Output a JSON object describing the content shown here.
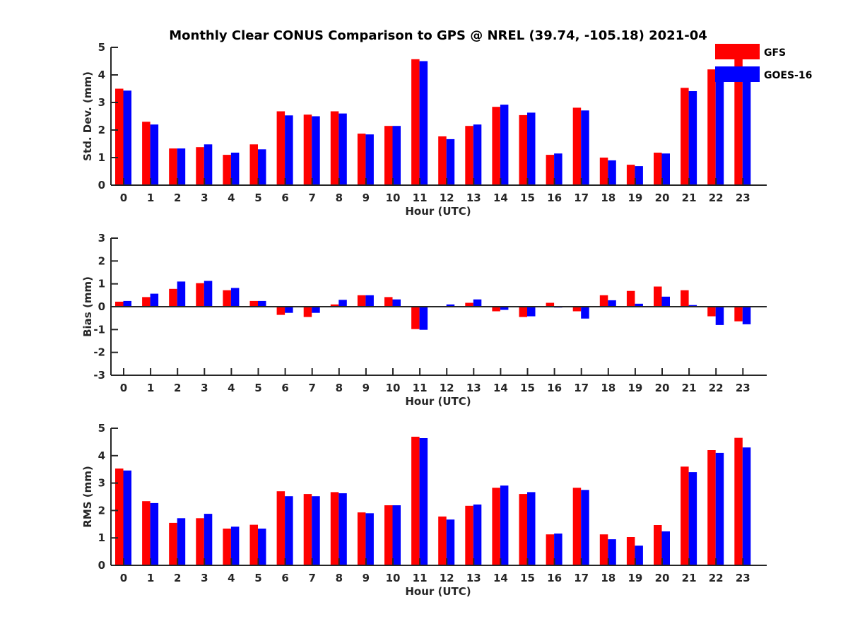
{
  "chart_data": [
    {
      "type": "bar",
      "title": "Monthly Clear CONUS Comparison to GPS @ NREL (39.74, -105.18) 2021-04",
      "xlabel": "Hour (UTC)",
      "ylabel": "Std. Dev. (mm)",
      "ylim": [
        0,
        5
      ],
      "yticks": [
        "0",
        "1",
        "2",
        "3",
        "4",
        "5"
      ],
      "categories": [
        "0",
        "1",
        "2",
        "3",
        "4",
        "5",
        "6",
        "7",
        "8",
        "9",
        "10",
        "11",
        "12",
        "13",
        "14",
        "15",
        "16",
        "17",
        "18",
        "19",
        "20",
        "21",
        "22",
        "23"
      ],
      "legend": "top-right",
      "series": [
        {
          "name": "GFS",
          "color": "#ff0000",
          "values": [
            3.5,
            2.3,
            1.33,
            1.38,
            1.1,
            1.48,
            2.68,
            2.56,
            2.68,
            1.87,
            2.15,
            4.57,
            1.77,
            2.15,
            2.84,
            2.54,
            1.1,
            2.81,
            1.0,
            0.74,
            1.18,
            3.53,
            4.2,
            4.65
          ]
        },
        {
          "name": "GOES-16",
          "color": "#0000ff",
          "values": [
            3.43,
            2.2,
            1.33,
            1.48,
            1.18,
            1.3,
            2.53,
            2.5,
            2.6,
            1.84,
            2.15,
            4.5,
            1.67,
            2.2,
            2.92,
            2.63,
            1.15,
            2.71,
            0.9,
            0.69,
            1.15,
            3.41,
            4.0,
            4.3
          ]
        }
      ]
    },
    {
      "type": "bar",
      "xlabel": "Hour (UTC)",
      "ylabel": "Bias (mm)",
      "ylim": [
        -3,
        3
      ],
      "yticks": [
        "-3",
        "-2",
        "-1",
        "0",
        "1",
        "2",
        "3"
      ],
      "categories": [
        "0",
        "1",
        "2",
        "3",
        "4",
        "5",
        "6",
        "7",
        "8",
        "9",
        "10",
        "11",
        "12",
        "13",
        "14",
        "15",
        "16",
        "17",
        "18",
        "19",
        "20",
        "21",
        "22",
        "23"
      ],
      "series": [
        {
          "name": "GFS",
          "color": "#ff0000",
          "values": [
            0.22,
            0.42,
            0.78,
            1.03,
            0.72,
            0.25,
            -0.36,
            -0.45,
            0.1,
            0.5,
            0.42,
            -0.98,
            0.03,
            0.17,
            -0.2,
            -0.45,
            0.17,
            -0.2,
            0.5,
            0.69,
            0.88,
            0.72,
            -0.42,
            -0.64
          ]
        },
        {
          "name": "GOES-16",
          "color": "#0000ff",
          "values": [
            0.25,
            0.57,
            1.1,
            1.13,
            0.82,
            0.25,
            -0.27,
            -0.27,
            0.3,
            0.5,
            0.32,
            -1.01,
            0.1,
            0.32,
            -0.14,
            -0.42,
            -0.04,
            -0.52,
            0.28,
            0.13,
            0.44,
            0.07,
            -0.8,
            -0.77
          ]
        }
      ]
    },
    {
      "type": "bar",
      "xlabel": "Hour (UTC)",
      "ylabel": "RMS (mm)",
      "ylim": [
        0,
        5
      ],
      "yticks": [
        "0",
        "1",
        "2",
        "3",
        "4",
        "5"
      ],
      "categories": [
        "0",
        "1",
        "2",
        "3",
        "4",
        "5",
        "6",
        "7",
        "8",
        "9",
        "10",
        "11",
        "12",
        "13",
        "14",
        "15",
        "16",
        "17",
        "18",
        "19",
        "20",
        "21",
        "22",
        "23"
      ],
      "series": [
        {
          "name": "GFS",
          "color": "#ff0000",
          "values": [
            3.53,
            2.34,
            1.55,
            1.72,
            1.34,
            1.48,
            2.7,
            2.6,
            2.67,
            1.93,
            2.19,
            4.69,
            1.78,
            2.17,
            2.83,
            2.6,
            1.13,
            2.83,
            1.13,
            1.03,
            1.47,
            3.6,
            4.2,
            4.65
          ]
        },
        {
          "name": "GOES-16",
          "color": "#0000ff",
          "values": [
            3.46,
            2.27,
            1.72,
            1.88,
            1.41,
            1.34,
            2.52,
            2.52,
            2.63,
            1.9,
            2.19,
            4.64,
            1.67,
            2.22,
            2.91,
            2.67,
            1.16,
            2.75,
            0.95,
            0.72,
            1.24,
            3.4,
            4.1,
            4.3
          ]
        }
      ]
    }
  ]
}
